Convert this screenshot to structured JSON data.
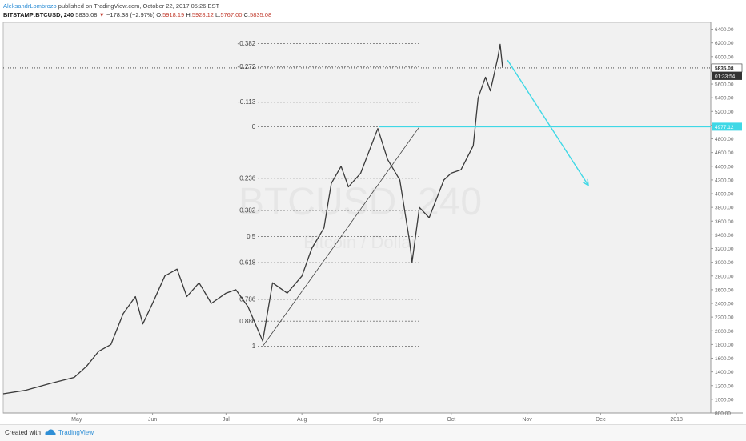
{
  "header": {
    "author": "AleksandrLombrozo",
    "published": "published on TradingView.com, October 22, 2017 05:26 EST",
    "symbol": "BITSTAMP:BTCUSD, 240",
    "last": "5835.08",
    "change": "−178.38 (−2.97%)",
    "o_label": "O:",
    "o_value": "5918.19",
    "h_label": "H:",
    "h_value": "5928.12",
    "l_label": "L:",
    "l_value": "5767.00",
    "c_label": "C:",
    "c_value": "5835.08"
  },
  "watermark": {
    "main": "BTCUSD, 240",
    "sub": "Bitcoin / Dollar"
  },
  "footer": {
    "created": "Created with",
    "brand": "TradingView"
  },
  "colors": {
    "price_line": "#3a3a3a",
    "fib_level": "#666666",
    "cyan": "#3fd8e6",
    "plot_bg": "#f1f1f1",
    "axis_text": "#666666"
  },
  "chart_data": {
    "type": "line",
    "series": [
      {
        "x": [
          "2017-04-01",
          "2017-04-10",
          "2017-04-20",
          "2017-04-30",
          "2017-05-05",
          "2017-05-10",
          "2017-05-15",
          "2017-05-20",
          "2017-05-25",
          "2017-05-28",
          "2017-06-01",
          "2017-06-06",
          "2017-06-11",
          "2017-06-15",
          "2017-06-20",
          "2017-06-25",
          "2017-07-01",
          "2017-07-05",
          "2017-07-10",
          "2017-07-16",
          "2017-07-20",
          "2017-07-26",
          "2017-08-01",
          "2017-08-05",
          "2017-08-10",
          "2017-08-13",
          "2017-08-17",
          "2017-08-20",
          "2017-08-25",
          "2017-09-01",
          "2017-09-05",
          "2017-09-10",
          "2017-09-14",
          "2017-09-15",
          "2017-09-18",
          "2017-09-22",
          "2017-09-28",
          "2017-10-01",
          "2017-10-05",
          "2017-10-10",
          "2017-10-12",
          "2017-10-15",
          "2017-10-17",
          "2017-10-20",
          "2017-10-21",
          "2017-10-22"
        ],
        "values": [
          1080,
          1130,
          1230,
          1320,
          1480,
          1700,
          1800,
          2250,
          2500,
          2100,
          2400,
          2800,
          2900,
          2500,
          2700,
          2400,
          2550,
          2600,
          2350,
          1850,
          2700,
          2550,
          2800,
          3200,
          3500,
          4150,
          4400,
          4100,
          4300,
          4950,
          4500,
          4200,
          3300,
          3000,
          3800,
          3650,
          4200,
          4300,
          4350,
          4700,
          5400,
          5700,
          5500,
          5980,
          6180,
          5835
        ]
      }
    ],
    "fib_levels": [
      {
        "ratio": "-0.382",
        "price": 6190
      },
      {
        "ratio": "-0.272",
        "price": 5850
      },
      {
        "ratio": "-0.113",
        "price": 5335
      },
      {
        "ratio": "0",
        "price": 4975
      },
      {
        "ratio": "0.236",
        "price": 4225
      },
      {
        "ratio": "0.382",
        "price": 3755
      },
      {
        "ratio": "0.5",
        "price": 3375
      },
      {
        "ratio": "0.618",
        "price": 2995
      },
      {
        "ratio": "0.786",
        "price": 2460
      },
      {
        "ratio": "0.886",
        "price": 2140
      },
      {
        "ratio": "1",
        "price": 1775
      }
    ],
    "trend_line": {
      "from": {
        "x": "2017-07-16",
        "y": 1775
      },
      "to": {
        "x": "2017-09-18",
        "y": 4975
      }
    },
    "horizontal_line": {
      "price": 4977.12,
      "label": "4977.12"
    },
    "last_price": {
      "price": 5835.08,
      "label": "5835.08",
      "countdown": "01:33:54"
    },
    "projection": {
      "from": {
        "x": "2017-10-24",
        "y": 5950
      },
      "to": {
        "x": "2017-11-26",
        "y": 4120
      }
    },
    "y_ticks": [
      800,
      1000,
      1200,
      1400,
      1600,
      1800,
      2000,
      2200,
      2400,
      2600,
      2800,
      3000,
      3200,
      3400,
      3600,
      3800,
      4000,
      4200,
      4400,
      4600,
      4800,
      5000,
      5200,
      5400,
      5600,
      5800,
      6000,
      6200,
      6400
    ],
    "y_tick_labels": [
      "800.00",
      "1000.00",
      "1200.00",
      "1400.00",
      "1600.00",
      "1800.00",
      "2000.00",
      "2200.00",
      "2400.00",
      "2600.00",
      "2800.00",
      "3000.00",
      "3200.00",
      "3400.00",
      "3600.00",
      "3800.00",
      "4000.00",
      "4200.00",
      "4400.00",
      "4600.00",
      "4800.00",
      "5000.00",
      "5200.00",
      "5400.00",
      "5600.00",
      "5800.00",
      "6000.00",
      "6200.00",
      "6400.00"
    ],
    "x_ticks": [
      {
        "label": "May",
        "date": "2017-05-01"
      },
      {
        "label": "Jun",
        "date": "2017-06-01"
      },
      {
        "label": "Jul",
        "date": "2017-07-01"
      },
      {
        "label": "Aug",
        "date": "2017-08-01"
      },
      {
        "label": "Sep",
        "date": "2017-09-01"
      },
      {
        "label": "Oct",
        "date": "2017-10-01"
      },
      {
        "label": "Nov",
        "date": "2017-11-01"
      },
      {
        "label": "Dec",
        "date": "2017-12-01"
      },
      {
        "label": "2018",
        "date": "2018-01-01"
      }
    ],
    "ylim": [
      800,
      6500
    ],
    "xlim": [
      "2017-04-01",
      "2018-01-15"
    ]
  }
}
